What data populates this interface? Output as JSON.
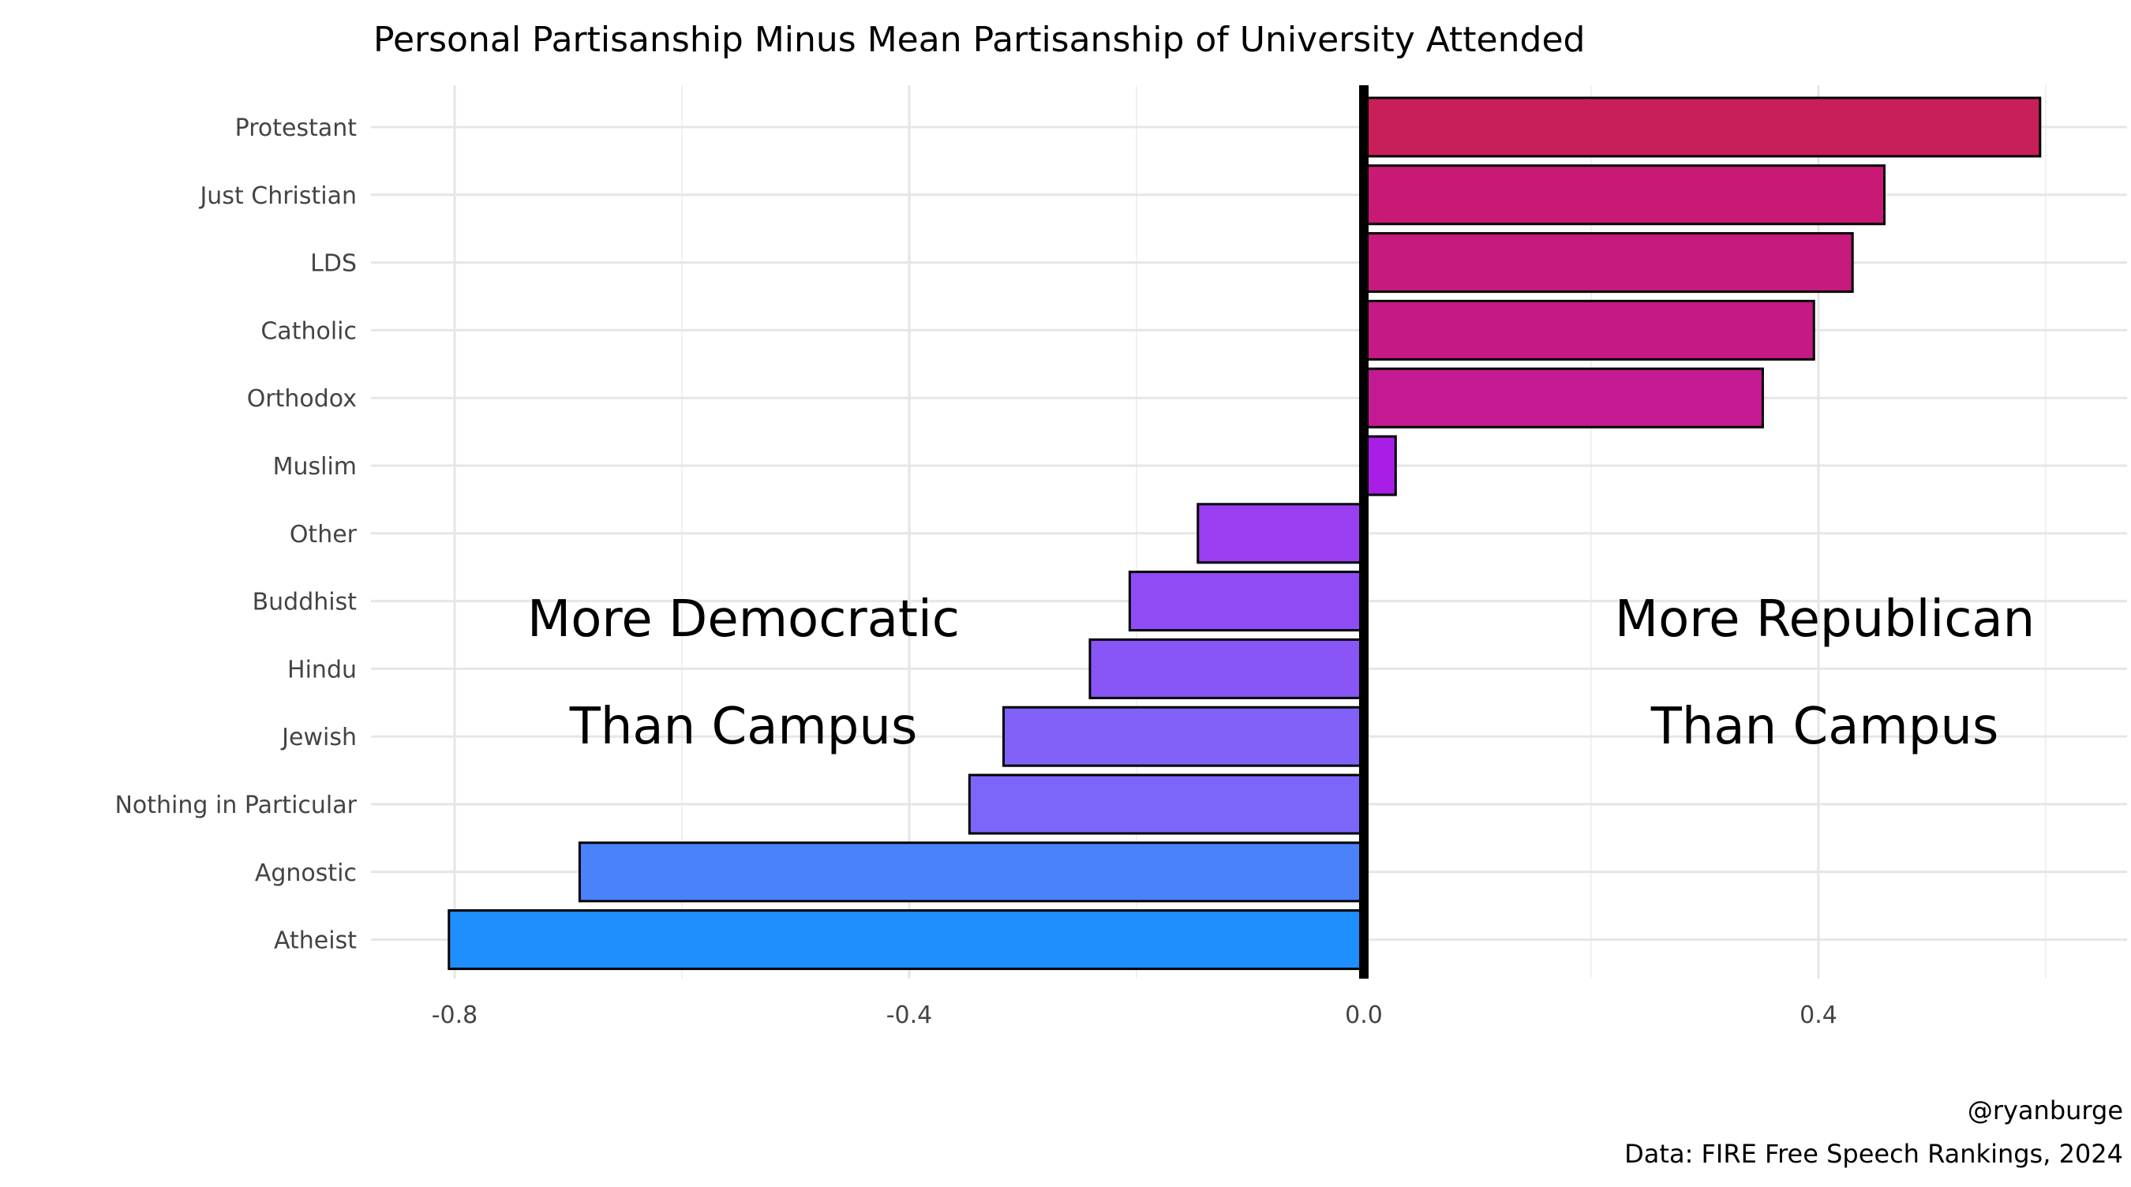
{
  "chart_data": {
    "type": "bar",
    "orientation": "horizontal",
    "title": "Personal Partisanship Minus Mean Partisanship of University Attended",
    "categories": [
      "Protestant",
      "Just Christian",
      "LDS",
      "Catholic",
      "Orthodox",
      "Muslim",
      "Other",
      "Buddhist",
      "Hindu",
      "Jewish",
      "Nothing in Particular",
      "Agnostic",
      "Atheist"
    ],
    "values": [
      0.595,
      0.458,
      0.43,
      0.396,
      0.351,
      0.028,
      -0.146,
      -0.206,
      -0.241,
      -0.317,
      -0.347,
      -0.69,
      -0.805
    ],
    "colors": [
      "#c81e5a",
      "#c81a74",
      "#c71a7d",
      "#c51a85",
      "#c31a93",
      "#a81ee6",
      "#9a3ef2",
      "#8f4cf5",
      "#8a55f7",
      "#8261f8",
      "#7c66f9",
      "#4a82fc",
      "#1e8ffc"
    ],
    "xlim": [
      -0.85,
      0.65
    ],
    "x_ticks": [
      -0.8,
      -0.4,
      0.0,
      0.4
    ],
    "x_tick_labels": [
      "-0.8",
      "-0.4",
      "0.0",
      "0.4"
    ],
    "grid": true,
    "annotations": {
      "left": [
        "More Democratic",
        "Than Campus"
      ],
      "right": [
        "More Republican",
        "Than Campus"
      ]
    },
    "caption": [
      "@ryanburge",
      "Data: FIRE Free Speech Rankings, 2024"
    ]
  }
}
